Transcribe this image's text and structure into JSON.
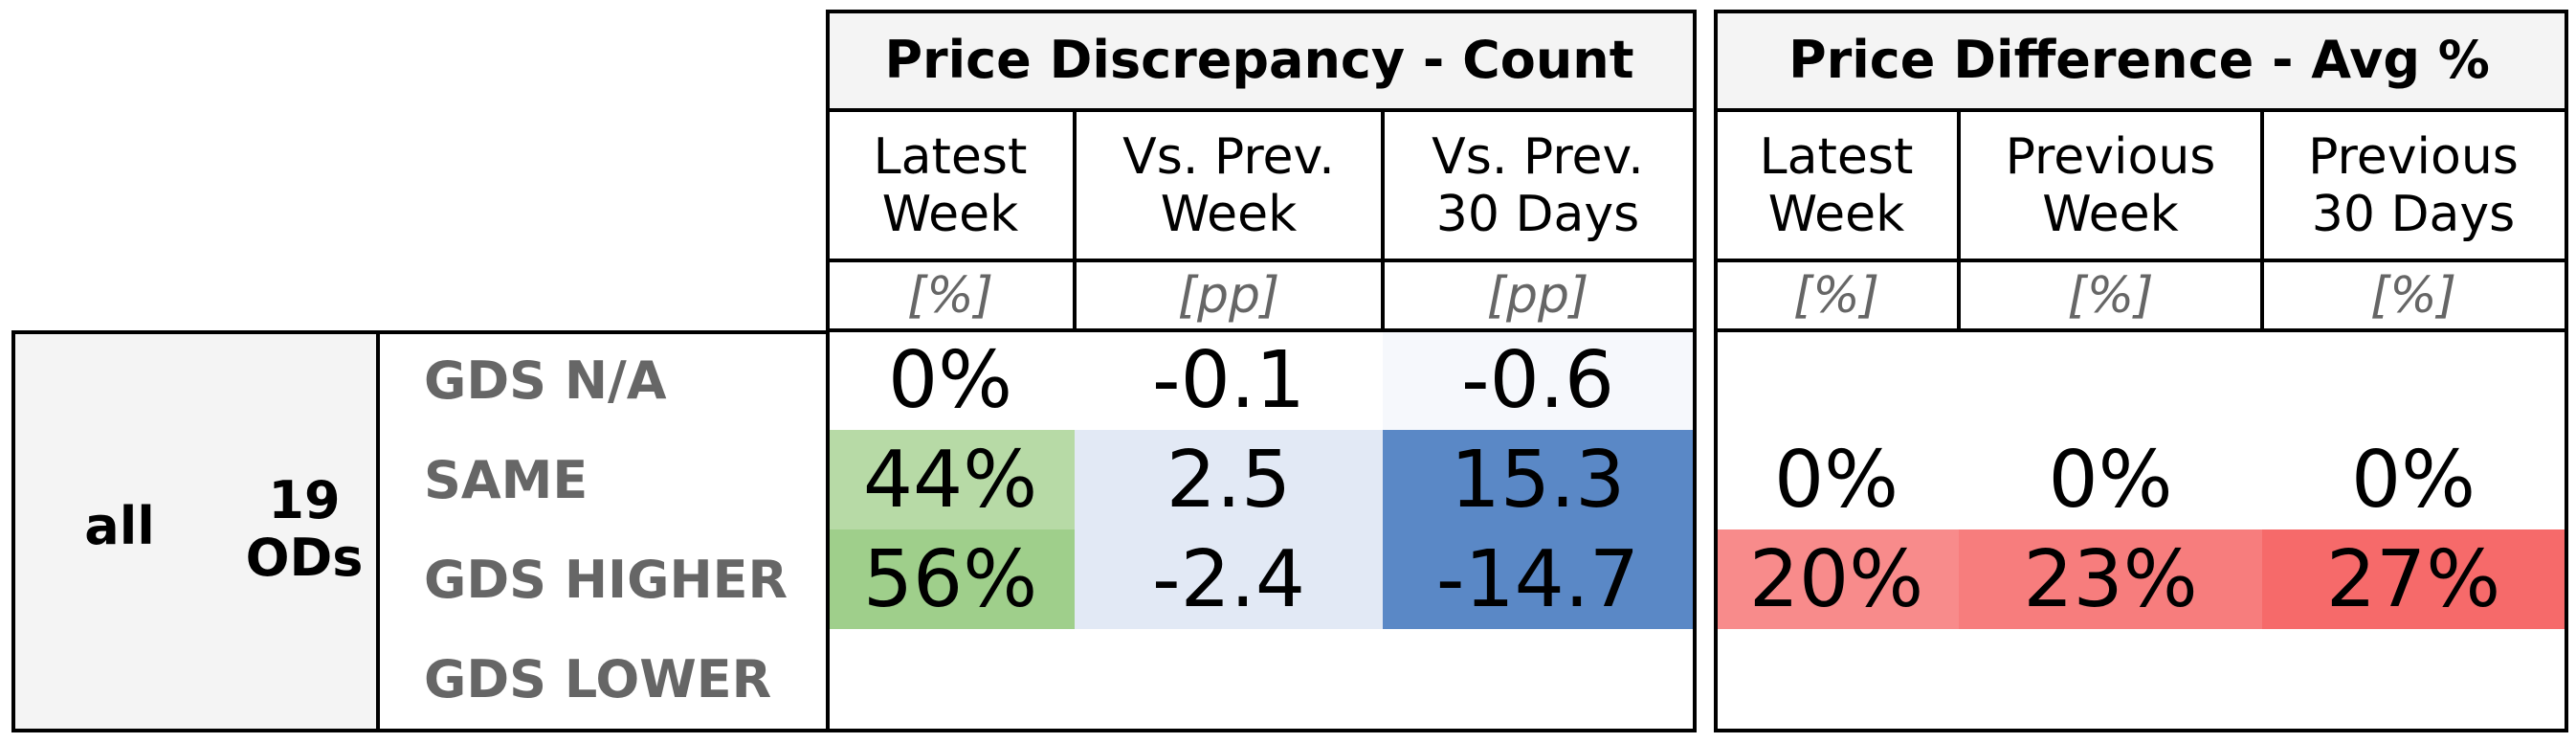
{
  "chart_data": {
    "type": "table",
    "title": "",
    "segment": {
      "group": "all",
      "count_label": "19\nODs"
    },
    "row_labels": [
      "GDS N/A",
      "SAME",
      "GDS HIGHER",
      "GDS LOWER"
    ],
    "panels": [
      {
        "title": "Price Discrepancy - Count",
        "columns": [
          {
            "header": "Latest\nWeek",
            "unit": "[%]"
          },
          {
            "header": "Vs. Prev.\nWeek",
            "unit": "[pp]"
          },
          {
            "header": "Vs. Prev.\n30 Days",
            "unit": "[pp]"
          }
        ],
        "rows": [
          {
            "values": [
              "0%",
              "-0.1",
              "-0.6"
            ],
            "colors": [
              "#ffffff",
              "#ffffff",
              "#f6f8fc"
            ]
          },
          {
            "values": [
              "44%",
              "2.5",
              "15.3"
            ],
            "colors": [
              "#b7daa6",
              "#e2e9f5",
              "#5a88c6"
            ]
          },
          {
            "values": [
              "56%",
              "-2.4",
              "-14.7"
            ],
            "colors": [
              "#9fcf8b",
              "#e2e9f5",
              "#5a88c6"
            ]
          },
          {
            "values": [
              "",
              "",
              ""
            ],
            "colors": [
              "#ffffff",
              "#ffffff",
              "#ffffff"
            ]
          }
        ]
      },
      {
        "title": "Price Difference - Avg %",
        "columns": [
          {
            "header": "Latest\nWeek",
            "unit": "[%]"
          },
          {
            "header": "Previous\nWeek",
            "unit": "[%]"
          },
          {
            "header": "Previous\n30 Days",
            "unit": "[%]"
          }
        ],
        "rows": [
          {
            "values": [
              "",
              "",
              ""
            ],
            "colors": [
              "#ffffff",
              "#ffffff",
              "#ffffff"
            ]
          },
          {
            "values": [
              "0%",
              "0%",
              "0%"
            ],
            "colors": [
              "#ffffff",
              "#ffffff",
              "#ffffff"
            ]
          },
          {
            "values": [
              "20%",
              "23%",
              "27%"
            ],
            "colors": [
              "#f88b8b",
              "#f77d7d",
              "#f66a6a"
            ]
          },
          {
            "values": [
              "",
              "",
              ""
            ],
            "colors": [
              "#ffffff",
              "#ffffff",
              "#ffffff"
            ]
          }
        ]
      }
    ]
  }
}
